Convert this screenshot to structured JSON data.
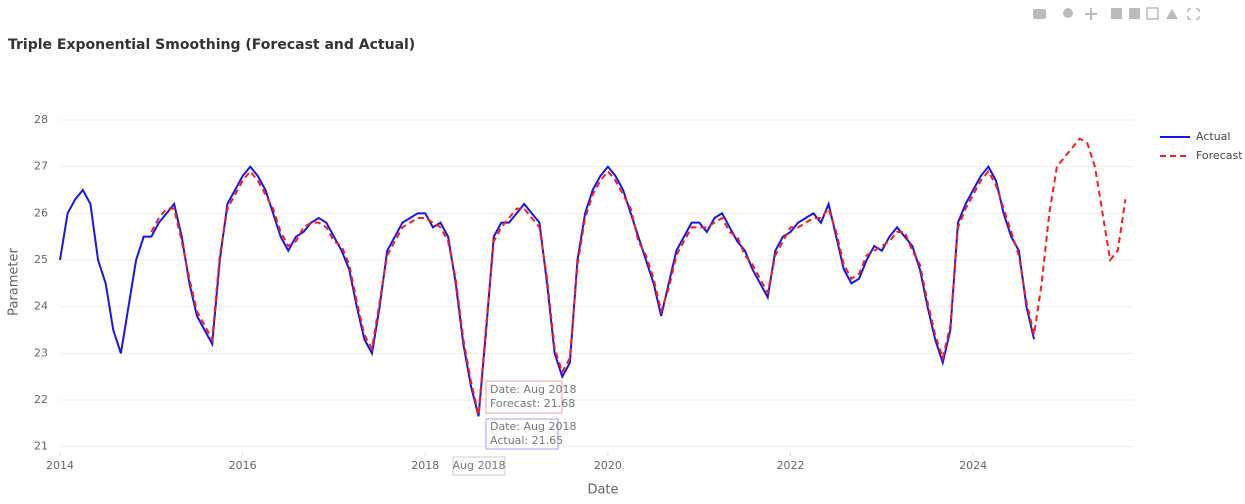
{
  "chart_data": {
    "type": "line",
    "title": "Triple Exponential Smoothing (Forecast and Actual)",
    "x_label": "Date",
    "y_label": "Parameter",
    "xlim": [
      "2014-01",
      "2025-10"
    ],
    "xticks": [
      2014,
      2016,
      2018,
      2020,
      2022,
      2024
    ],
    "ylim": [
      20.8,
      28.3
    ],
    "yticks": [
      21,
      22,
      23,
      24,
      25,
      26,
      27,
      28
    ],
    "grid": true,
    "legend": "top-right",
    "series": [
      {
        "name": "Actual",
        "color": "#1515f0",
        "dash": "solid",
        "x": [
          "2014-01",
          "2014-02",
          "2014-03",
          "2014-04",
          "2014-05",
          "2014-06",
          "2014-07",
          "2014-08",
          "2014-09",
          "2014-10",
          "2014-11",
          "2014-12",
          "2015-01",
          "2015-02",
          "2015-03",
          "2015-04",
          "2015-05",
          "2015-06",
          "2015-07",
          "2015-08",
          "2015-09",
          "2015-10",
          "2015-11",
          "2015-12",
          "2016-01",
          "2016-02",
          "2016-03",
          "2016-04",
          "2016-05",
          "2016-06",
          "2016-07",
          "2016-08",
          "2016-09",
          "2016-10",
          "2016-11",
          "2016-12",
          "2017-01",
          "2017-02",
          "2017-03",
          "2017-04",
          "2017-05",
          "2017-06",
          "2017-07",
          "2017-08",
          "2017-09",
          "2017-10",
          "2017-11",
          "2017-12",
          "2018-01",
          "2018-02",
          "2018-03",
          "2018-04",
          "2018-05",
          "2018-06",
          "2018-07",
          "2018-08",
          "2018-09",
          "2018-10",
          "2018-11",
          "2018-12",
          "2019-01",
          "2019-02",
          "2019-03",
          "2019-04",
          "2019-05",
          "2019-06",
          "2019-07",
          "2019-08",
          "2019-09",
          "2019-10",
          "2019-11",
          "2019-12",
          "2020-01",
          "2020-02",
          "2020-03",
          "2020-04",
          "2020-05",
          "2020-06",
          "2020-07",
          "2020-08",
          "2020-09",
          "2020-10",
          "2020-11",
          "2020-12",
          "2021-01",
          "2021-02",
          "2021-03",
          "2021-04",
          "2021-05",
          "2021-06",
          "2021-07",
          "2021-08",
          "2021-09",
          "2021-10",
          "2021-11",
          "2021-12",
          "2022-01",
          "2022-02",
          "2022-03",
          "2022-04",
          "2022-05",
          "2022-06",
          "2022-07",
          "2022-08",
          "2022-09",
          "2022-10",
          "2022-11",
          "2022-12",
          "2023-01",
          "2023-02",
          "2023-03",
          "2023-04",
          "2023-05",
          "2023-06",
          "2023-07",
          "2023-08",
          "2023-09",
          "2023-10",
          "2023-11",
          "2023-12",
          "2024-01",
          "2024-02",
          "2024-03",
          "2024-04",
          "2024-05",
          "2024-06",
          "2024-07",
          "2024-08",
          "2024-09"
        ],
        "values": [
          25,
          26,
          26.3,
          26.5,
          26.2,
          25,
          24.5,
          23.5,
          23,
          24,
          25,
          25.5,
          25.5,
          25.8,
          26,
          26.2,
          25.5,
          24.5,
          23.8,
          23.5,
          23.2,
          25,
          26.2,
          26.5,
          26.8,
          27,
          26.8,
          26.5,
          26,
          25.5,
          25.2,
          25.5,
          25.6,
          25.8,
          25.9,
          25.8,
          25.5,
          25.2,
          24.8,
          24,
          23.3,
          23,
          24,
          25.2,
          25.5,
          25.8,
          25.9,
          26,
          26,
          25.7,
          25.8,
          25.5,
          24.5,
          23.2,
          22.3,
          21.65,
          23.5,
          25.5,
          25.8,
          25.8,
          26,
          26.2,
          26,
          25.8,
          24.5,
          23,
          22.5,
          22.8,
          25,
          26,
          26.5,
          26.8,
          27,
          26.8,
          26.5,
          26,
          25.5,
          25,
          24.5,
          23.8,
          24.5,
          25.2,
          25.5,
          25.8,
          25.8,
          25.6,
          25.9,
          26,
          25.7,
          25.4,
          25.2,
          24.8,
          24.5,
          24.2,
          25.2,
          25.5,
          25.6,
          25.8,
          25.9,
          26,
          25.8,
          26.2,
          25.5,
          24.8,
          24.5,
          24.6,
          25,
          25.3,
          25.2,
          25.5,
          25.7,
          25.5,
          25.3,
          24.8,
          24,
          23.3,
          22.8,
          23.5,
          25.8,
          26.2,
          26.5,
          26.8,
          27,
          26.7,
          26,
          25.5,
          25.2,
          24,
          23.3
        ]
      },
      {
        "name": "Forecast",
        "color": "#ff1a1a",
        "dash": "dashed",
        "x": [
          "2015-01",
          "2015-02",
          "2015-03",
          "2015-04",
          "2015-05",
          "2015-06",
          "2015-07",
          "2015-08",
          "2015-09",
          "2015-10",
          "2015-11",
          "2015-12",
          "2016-01",
          "2016-02",
          "2016-03",
          "2016-04",
          "2016-05",
          "2016-06",
          "2016-07",
          "2016-08",
          "2016-09",
          "2016-10",
          "2016-11",
          "2016-12",
          "2017-01",
          "2017-02",
          "2017-03",
          "2017-04",
          "2017-05",
          "2017-06",
          "2017-07",
          "2017-08",
          "2017-09",
          "2017-10",
          "2017-11",
          "2017-12",
          "2018-01",
          "2018-02",
          "2018-03",
          "2018-04",
          "2018-05",
          "2018-06",
          "2018-07",
          "2018-08",
          "2018-09",
          "2018-10",
          "2018-11",
          "2018-12",
          "2019-01",
          "2019-02",
          "2019-03",
          "2019-04",
          "2019-05",
          "2019-06",
          "2019-07",
          "2019-08",
          "2019-09",
          "2019-10",
          "2019-11",
          "2019-12",
          "2020-01",
          "2020-02",
          "2020-03",
          "2020-04",
          "2020-05",
          "2020-06",
          "2020-07",
          "2020-08",
          "2020-09",
          "2020-10",
          "2020-11",
          "2020-12",
          "2021-01",
          "2021-02",
          "2021-03",
          "2021-04",
          "2021-05",
          "2021-06",
          "2021-07",
          "2021-08",
          "2021-09",
          "2021-10",
          "2021-11",
          "2021-12",
          "2022-01",
          "2022-02",
          "2022-03",
          "2022-04",
          "2022-05",
          "2022-06",
          "2022-07",
          "2022-08",
          "2022-09",
          "2022-10",
          "2022-11",
          "2022-12",
          "2023-01",
          "2023-02",
          "2023-03",
          "2023-04",
          "2023-05",
          "2023-06",
          "2023-07",
          "2023-08",
          "2023-09",
          "2023-10",
          "2023-11",
          "2023-12",
          "2024-01",
          "2024-02",
          "2024-03",
          "2024-04",
          "2024-05",
          "2024-06",
          "2024-07",
          "2024-08",
          "2024-09",
          "2024-10",
          "2024-11",
          "2024-12",
          "2025-01",
          "2025-02",
          "2025-03",
          "2025-04",
          "2025-05",
          "2025-06",
          "2025-07",
          "2025-08",
          "2025-09"
        ],
        "values": [
          25.6,
          25.9,
          26.1,
          26.1,
          25.4,
          24.6,
          23.9,
          23.6,
          23.3,
          25.1,
          26.1,
          26.4,
          26.7,
          26.9,
          26.7,
          26.4,
          26.1,
          25.6,
          25.3,
          25.4,
          25.7,
          25.8,
          25.8,
          25.7,
          25.4,
          25.3,
          24.9,
          24.1,
          23.4,
          23.1,
          24.1,
          25.1,
          25.4,
          25.7,
          25.8,
          25.9,
          25.9,
          25.8,
          25.7,
          25.4,
          24.6,
          23.3,
          22.4,
          21.68,
          23.6,
          25.4,
          25.7,
          25.9,
          26.1,
          26.1,
          25.9,
          25.7,
          24.6,
          23.1,
          22.6,
          22.9,
          24.9,
          25.9,
          26.4,
          26.7,
          26.9,
          26.7,
          26.4,
          26.1,
          25.4,
          25.1,
          24.6,
          23.9,
          24.4,
          25.1,
          25.4,
          25.7,
          25.7,
          25.7,
          25.8,
          25.9,
          25.6,
          25.5,
          25.1,
          24.9,
          24.6,
          24.3,
          25.1,
          25.4,
          25.7,
          25.7,
          25.8,
          25.9,
          25.9,
          26.1,
          25.6,
          24.9,
          24.6,
          24.7,
          25.1,
          25.2,
          25.3,
          25.4,
          25.6,
          25.6,
          25.2,
          24.9,
          24.1,
          23.4,
          22.9,
          23.6,
          25.7,
          26.1,
          26.4,
          26.7,
          26.9,
          26.6,
          26.1,
          25.6,
          25.1,
          24.1,
          23.4,
          24.5,
          26,
          27,
          27.2,
          27.4,
          27.6,
          27.5,
          27,
          26,
          25,
          25.2,
          26.3
        ]
      }
    ],
    "hover": {
      "x_label": "Aug 2018",
      "forecast_lines": [
        "Date: Aug 2018",
        "Forecast: 21.68"
      ],
      "actual_lines": [
        "Date: Aug 2018",
        "Actual: 21.65"
      ]
    }
  }
}
